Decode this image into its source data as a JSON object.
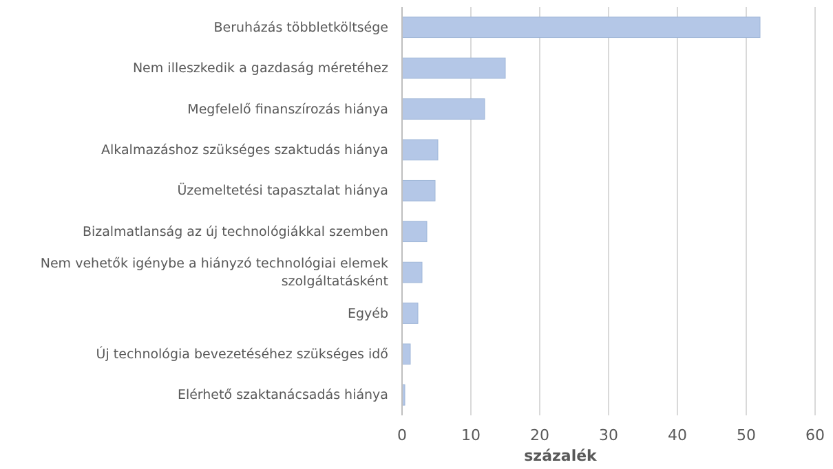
{
  "chart_data": {
    "type": "bar",
    "orientation": "horizontal",
    "xlabel": "százalék",
    "categories": [
      "Beruházás többletköltsége",
      "Nem illeszkedik a gazdaság méretéhez",
      "Megfelelő finanszírozás hiánya",
      "Alkalmazáshoz szükséges szaktudás hiánya",
      "Üzemeltetési tapasztalat hiánya",
      "Bizalmatlanság az új technológiákkal szemben",
      "Nem vehetők igénybe a hiányzó technológiai elemek szolgáltatásként",
      "Egyéb",
      "Új technológia bevezetéséhez szükséges idő",
      "Elérhető szaktanácsadás hiánya"
    ],
    "values": [
      52,
      15,
      12,
      5.2,
      4.8,
      3.6,
      2.9,
      2.3,
      1.2,
      0.4
    ],
    "color": "#b4c7e7",
    "xlim": [
      0,
      60
    ],
    "xticks": [
      0,
      10,
      20,
      30,
      40,
      50,
      60
    ],
    "grid": "x"
  }
}
